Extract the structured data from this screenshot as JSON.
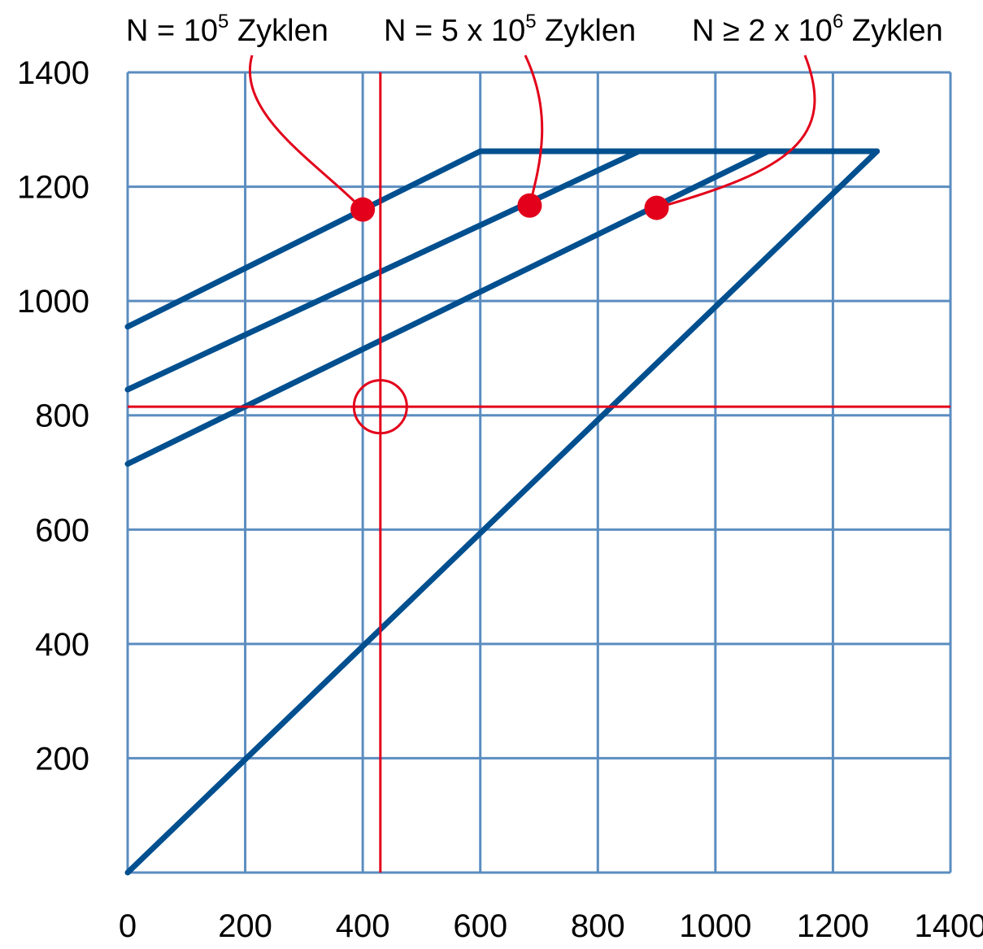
{
  "chart_data": {
    "type": "line",
    "title": "",
    "xlabel": "",
    "ylabel": "",
    "xlim": [
      0,
      1400
    ],
    "ylim": [
      0,
      1400
    ],
    "grid": true,
    "x_ticks": [
      0,
      200,
      400,
      600,
      800,
      1000,
      1200,
      1400
    ],
    "y_ticks": [
      200,
      400,
      600,
      800,
      1000,
      1200,
      1400
    ],
    "colors": {
      "grid": "#5b8dc0",
      "series": "#004f8f",
      "highlight": "#e2001a",
      "text": "#000000"
    },
    "series": [
      {
        "points": [
          [
            0,
            0
          ],
          [
            1275,
            1262
          ]
        ]
      },
      {
        "points": [
          [
            0,
            955
          ],
          [
            600,
            1262
          ],
          [
            1275,
            1262
          ]
        ]
      },
      {
        "points": [
          [
            0,
            845
          ],
          [
            870,
            1262
          ]
        ]
      },
      {
        "points": [
          [
            0,
            715
          ],
          [
            1090,
            1262
          ]
        ]
      }
    ],
    "reference_lines": {
      "x": 430,
      "y": 815
    },
    "marker_circle": {
      "x": 430,
      "y": 815,
      "radius": 45
    },
    "annotations": [
      {
        "prefix": "N = 10",
        "sup": "5",
        "suffix": " Zyklen",
        "point": [
          400,
          1160
        ]
      },
      {
        "prefix": "N = 5 x 10",
        "sup": "5",
        "suffix": " Zyklen",
        "point": [
          684,
          1167
        ]
      },
      {
        "prefix": "N ≥ 2 x 10",
        "sup": "6",
        "suffix": " Zyklen",
        "point": [
          900,
          1163
        ]
      }
    ]
  }
}
